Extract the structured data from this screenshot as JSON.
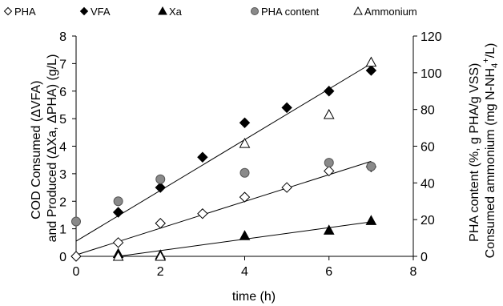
{
  "chart_data": {
    "type": "scatter",
    "xlabel": "time (h)",
    "xlim": [
      0,
      8
    ],
    "x_ticks": [
      "0",
      "2",
      "4",
      "6",
      "8"
    ],
    "ylim_left": [
      0,
      8
    ],
    "y_ticks_left": [
      "0",
      "1",
      "2",
      "3",
      "4",
      "5",
      "6",
      "7",
      "8"
    ],
    "ylim_right": [
      0,
      120
    ],
    "y_ticks_right": [
      "0",
      "20",
      "40",
      "60",
      "80",
      "100",
      "120"
    ],
    "ylabel_left_line1": "COD Consumed (ΔVFA)",
    "ylabel_left_line2": "and Produced (ΔXa, ΔPHA) (g/L)",
    "ylabel_right_line1": "PHA content (%, g PHA/g VSS)",
    "ylabel_right_line2_pre": "Consumed ammonium (mg N-NH",
    "ylabel_right_line2_sub": "4",
    "ylabel_right_line2_sup": "+",
    "ylabel_right_line2_post": "/L)",
    "grid": false,
    "legend_position": "top",
    "series": [
      {
        "name": "PHA",
        "marker": "diamond-open",
        "axis": "left",
        "x": [
          0,
          1,
          2,
          3,
          4,
          5,
          6,
          7
        ],
        "y": [
          0.0,
          0.5,
          1.2,
          1.55,
          2.15,
          2.5,
          3.1,
          3.25
        ]
      },
      {
        "name": "VFA",
        "marker": "diamond-filled",
        "axis": "left",
        "x": [
          1,
          2,
          3,
          4,
          5,
          6,
          7
        ],
        "y": [
          1.6,
          2.5,
          3.6,
          4.85,
          5.4,
          6.0,
          6.75
        ]
      },
      {
        "name": "Xa",
        "marker": "triangle-filled",
        "axis": "left",
        "x": [
          1,
          2,
          4,
          6,
          7
        ],
        "y": [
          0.1,
          0.05,
          0.75,
          0.95,
          1.3
        ]
      },
      {
        "name": "PHA content",
        "marker": "circle-gray",
        "axis": "right",
        "x": [
          0,
          1,
          2,
          4,
          6,
          7
        ],
        "y": [
          19,
          30,
          42,
          45.5,
          51,
          49
        ]
      },
      {
        "name": "Ammonium",
        "marker": "triangle-open",
        "axis": "left",
        "x": [
          1,
          2,
          4,
          6,
          7
        ],
        "y": [
          0.0,
          0.0,
          4.1,
          5.15,
          7.05
        ]
      }
    ],
    "trendlines": [
      {
        "axis": "left",
        "x": [
          0,
          7
        ],
        "y": [
          0.55,
          7.0
        ]
      },
      {
        "axis": "left",
        "x": [
          0,
          7
        ],
        "y": [
          0.05,
          3.45
        ]
      },
      {
        "axis": "left",
        "x": [
          1,
          7
        ],
        "y": [
          0.0,
          1.25
        ]
      }
    ]
  }
}
